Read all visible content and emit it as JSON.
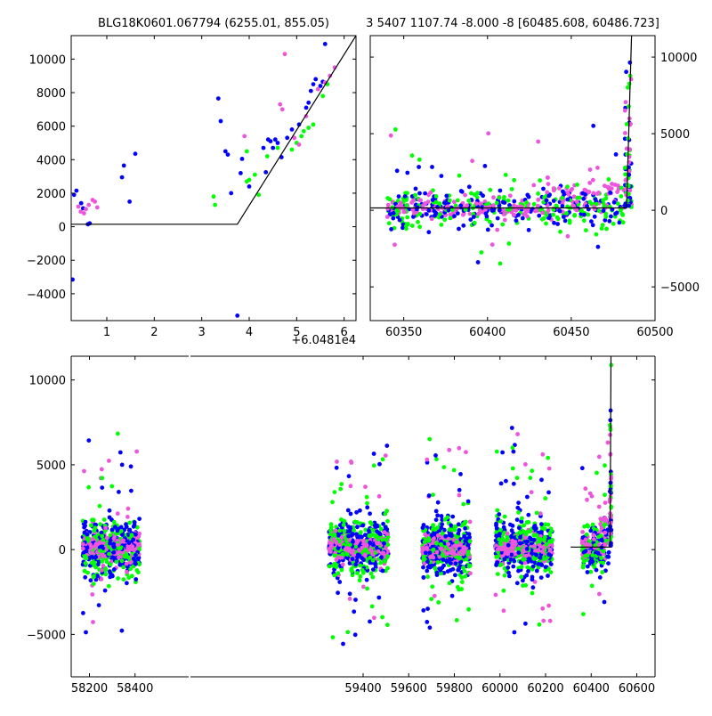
{
  "colors": {
    "blue": "#0000ff",
    "green": "#00ff00",
    "magenta": "#ee55dd",
    "model": "#000000"
  },
  "chart_data": [
    {
      "id": "zoom",
      "type": "scatter",
      "title": "BLG18K0601.067794 (6255.01, 855.05)",
      "xlim": [
        0.25,
        6.25
      ],
      "ylim": [
        -5600,
        11400
      ],
      "xticks": [
        1,
        2,
        3,
        4,
        5,
        6
      ],
      "yticks": [
        -4000,
        -2000,
        0,
        2000,
        4000,
        6000,
        8000,
        10000
      ],
      "offset_label": "+6.0481e4",
      "series": [
        {
          "color": "blue",
          "points": [
            [
              0.28,
              -3150
            ],
            [
              0.31,
              1900
            ],
            [
              0.36,
              2150
            ],
            [
              0.46,
              1400
            ],
            [
              0.5,
              1100
            ],
            [
              0.6,
              150
            ],
            [
              0.64,
              200
            ],
            [
              1.32,
              2950
            ],
            [
              1.36,
              3650
            ],
            [
              1.48,
              1500
            ],
            [
              1.6,
              4350
            ],
            [
              3.35,
              7650
            ],
            [
              3.4,
              6300
            ],
            [
              3.5,
              4500
            ],
            [
              3.55,
              4300
            ],
            [
              3.62,
              2000
            ],
            [
              3.82,
              3200
            ],
            [
              3.85,
              4050
            ],
            [
              4.0,
              2400
            ],
            [
              4.3,
              4700
            ],
            [
              4.35,
              3250
            ],
            [
              4.4,
              5200
            ],
            [
              4.45,
              5100
            ],
            [
              4.5,
              4700
            ],
            [
              4.55,
              5200
            ],
            [
              4.6,
              5000
            ],
            [
              4.68,
              4150
            ],
            [
              4.8,
              5300
            ],
            [
              4.9,
              5800
            ],
            [
              5.05,
              6100
            ],
            [
              5.2,
              7100
            ],
            [
              5.25,
              7400
            ],
            [
              5.3,
              8100
            ],
            [
              5.35,
              8500
            ],
            [
              5.4,
              8800
            ],
            [
              5.5,
              8400
            ],
            [
              5.55,
              8650
            ],
            [
              5.6,
              10900
            ],
            [
              3.75,
              -5300
            ]
          ]
        },
        {
          "color": "green",
          "points": [
            [
              3.25,
              1800
            ],
            [
              3.28,
              1300
            ],
            [
              3.95,
              4500
            ],
            [
              4.0,
              2800
            ],
            [
              4.12,
              3100
            ],
            [
              4.2,
              1900
            ],
            [
              4.38,
              4200
            ],
            [
              4.6,
              4700
            ],
            [
              4.9,
              4600
            ],
            [
              5.0,
              5000
            ],
            [
              5.1,
              5400
            ],
            [
              5.15,
              5700
            ],
            [
              5.25,
              5900
            ],
            [
              5.35,
              6100
            ],
            [
              5.55,
              7800
            ],
            [
              5.65,
              8500
            ],
            [
              3.95,
              2700
            ]
          ]
        },
        {
          "color": "magenta",
          "points": [
            [
              0.4,
              1200
            ],
            [
              0.45,
              900
            ],
            [
              0.52,
              800
            ],
            [
              0.56,
              1050
            ],
            [
              0.62,
              1300
            ],
            [
              0.7,
              1600
            ],
            [
              0.75,
              1500
            ],
            [
              0.8,
              1150
            ],
            [
              3.9,
              5400
            ],
            [
              4.65,
              7300
            ],
            [
              4.7,
              7000
            ],
            [
              4.75,
              10300
            ],
            [
              4.95,
              5300
            ],
            [
              5.05,
              4900
            ],
            [
              5.2,
              6600
            ],
            [
              5.45,
              8200
            ],
            [
              5.6,
              8600
            ],
            [
              5.7,
              9000
            ],
            [
              5.8,
              9500
            ]
          ]
        }
      ],
      "model": [
        [
          0.25,
          150
        ],
        [
          3.75,
          150
        ],
        [
          6.25,
          11400
        ]
      ]
    },
    {
      "id": "mid",
      "type": "scatter",
      "title": "3 5407 1107.74 -8.000 -8 [60485.608, 60486.723]",
      "xlim": [
        60330,
        60500
      ],
      "ylim": [
        -7200,
        11400
      ],
      "xticks": [
        60350,
        60400,
        60450,
        60500
      ],
      "yticks": [
        -5000,
        0,
        5000,
        10000
      ],
      "y_side": "right",
      "model": [
        [
          60330,
          150
        ],
        [
          60483,
          150
        ],
        [
          60486,
          11400
        ]
      ]
    },
    {
      "id": "full",
      "type": "scatter",
      "title": "",
      "xlim": [
        58120,
        60680
      ],
      "ylim": [
        -7500,
        11400
      ],
      "xticks": [
        58200,
        58400,
        59400,
        59600,
        59800,
        60000,
        60200,
        60400,
        60600
      ],
      "yticks": [
        -5000,
        0,
        5000,
        10000
      ],
      "model": [
        [
          60310,
          150
        ],
        [
          60483,
          150
        ],
        [
          60487,
          11400
        ]
      ]
    }
  ]
}
